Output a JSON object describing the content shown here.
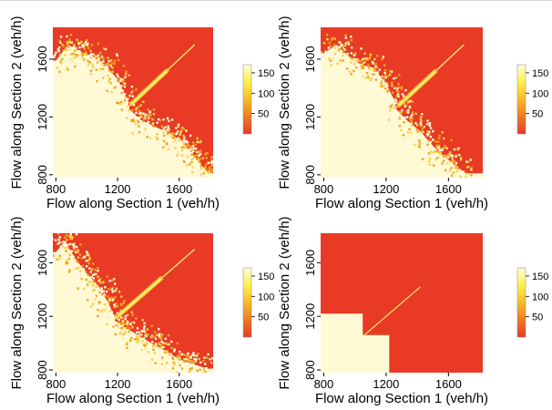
{
  "colors": {
    "background_low": "#E83A25",
    "region_high": "#FFF9D6",
    "speck_mid": "#F5A31E",
    "diagonal": "#FFE870"
  },
  "colorbar": {
    "ticks": [
      150,
      100,
      50
    ],
    "stops": [
      "#E83A25",
      "#F07A22",
      "#F8BB24",
      "#FFF04A",
      "#FFFCE0"
    ]
  },
  "chart_data": [
    {
      "type": "heatmap",
      "panel": "top-left",
      "xlabel": "Flow along Section 1 (veh/h)",
      "ylabel": "Flow along Section 2 (veh/h)",
      "xticks": [
        800,
        1200,
        1600
      ],
      "yticks": [
        800,
        1200,
        1600
      ],
      "xlim": [
        780,
        1820
      ],
      "ylim": [
        780,
        1820
      ],
      "colorbar_range": [
        0,
        170
      ],
      "boundary_upper": [
        [
          800,
          1590
        ],
        [
          880,
          1700
        ],
        [
          960,
          1650
        ],
        [
          1040,
          1620
        ],
        [
          1120,
          1560
        ],
        [
          1200,
          1460
        ],
        [
          1270,
          1300
        ]
      ],
      "boundary_lower": [
        [
          1270,
          1260
        ],
        [
          1350,
          1180
        ],
        [
          1450,
          1130
        ],
        [
          1550,
          1080
        ],
        [
          1620,
          1030
        ],
        [
          1680,
          950
        ],
        [
          1740,
          870
        ],
        [
          1790,
          810
        ]
      ],
      "diagonal": [
        1270,
        1700
      ]
    },
    {
      "type": "heatmap",
      "panel": "top-right",
      "xlabel": "Flow along Section 1 (veh/h)",
      "ylabel": "Flow along Section 2 (veh/h)",
      "xticks": [
        800,
        1200,
        1600
      ],
      "yticks": [
        800,
        1200,
        1600
      ],
      "xlim": [
        780,
        1820
      ],
      "ylim": [
        780,
        1820
      ],
      "colorbar_range": [
        0,
        170
      ],
      "boundary_upper": [
        [
          800,
          1640
        ],
        [
          880,
          1700
        ],
        [
          960,
          1620
        ],
        [
          1040,
          1560
        ],
        [
          1120,
          1540
        ],
        [
          1200,
          1430
        ],
        [
          1260,
          1300
        ]
      ],
      "boundary_lower": [
        [
          1260,
          1260
        ],
        [
          1330,
          1180
        ],
        [
          1420,
          1100
        ],
        [
          1500,
          1000
        ],
        [
          1580,
          920
        ],
        [
          1650,
          860
        ],
        [
          1710,
          810
        ]
      ],
      "diagonal": [
        1260,
        1700
      ]
    },
    {
      "type": "heatmap",
      "panel": "bottom-left",
      "xlabel": "Flow along Section 1 (veh/h)",
      "ylabel": "Flow along Section 2 (veh/h)",
      "xticks": [
        800,
        1200,
        1600
      ],
      "yticks": [
        800,
        1200,
        1600
      ],
      "xlim": [
        780,
        1820
      ],
      "ylim": [
        780,
        1820
      ],
      "colorbar_range": [
        0,
        170
      ],
      "boundary_upper": [
        [
          800,
          1680
        ],
        [
          860,
          1760
        ],
        [
          920,
          1640
        ],
        [
          1000,
          1520
        ],
        [
          1080,
          1420
        ],
        [
          1140,
          1300
        ],
        [
          1180,
          1200
        ]
      ],
      "boundary_lower": [
        [
          1180,
          1170
        ],
        [
          1250,
          1120
        ],
        [
          1330,
          1060
        ],
        [
          1420,
          1000
        ],
        [
          1500,
          950
        ],
        [
          1600,
          880
        ],
        [
          1700,
          840
        ],
        [
          1780,
          810
        ]
      ],
      "diagonal": [
        1180,
        1700
      ]
    },
    {
      "type": "heatmap",
      "panel": "bottom-right",
      "xlabel": "Flow along Section 1 (veh/h)",
      "ylabel": "Flow along Section 2 (veh/h)",
      "xticks": [
        800,
        1200,
        1600
      ],
      "yticks": [
        800,
        1200,
        1600
      ],
      "xlim": [
        780,
        1820
      ],
      "ylim": [
        780,
        1820
      ],
      "colorbar_range": [
        0,
        170
      ],
      "region_rect": [
        [
          780,
          1220
        ],
        [
          1050,
          1060
        ],
        [
          1220,
          1040
        ]
      ],
      "diagonal": [
        1060,
        1420
      ]
    }
  ]
}
